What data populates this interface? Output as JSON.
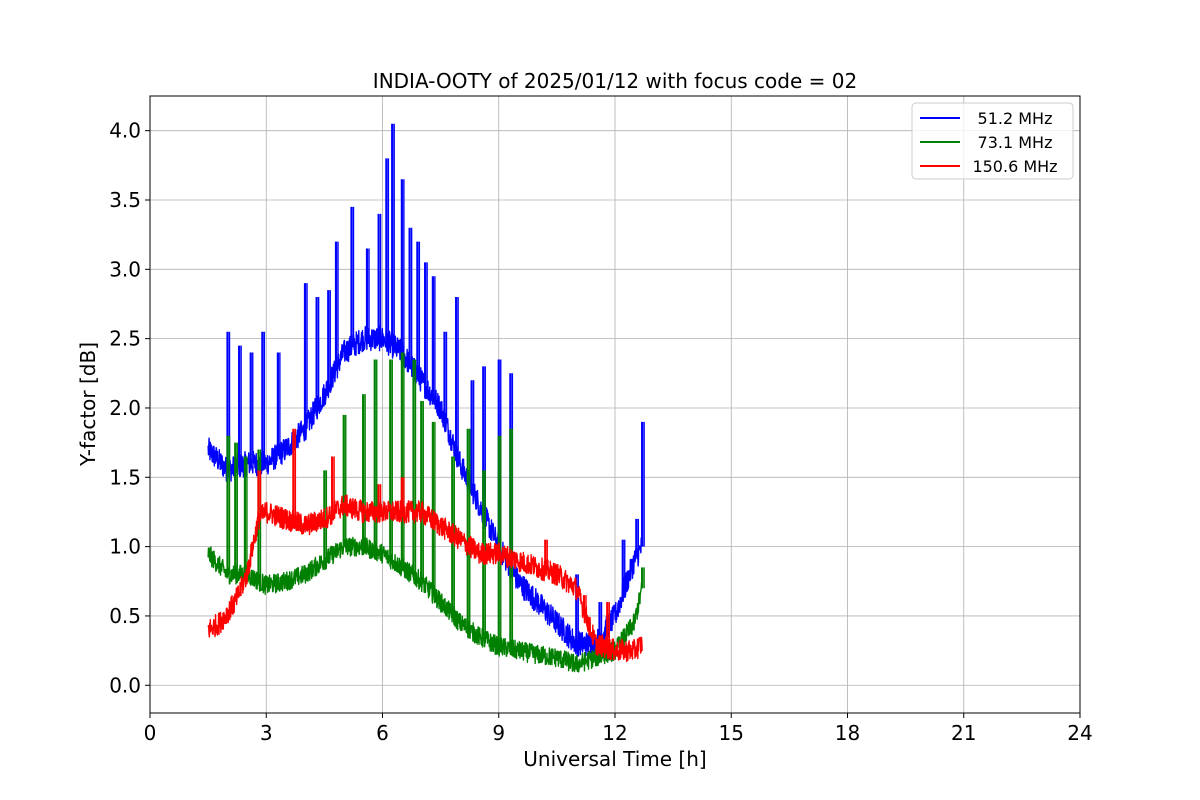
{
  "chart_data": {
    "type": "line",
    "title": "INDIA-OOTY of 2025/01/12 with focus code = 02",
    "xlabel": "Universal Time [h]",
    "ylabel": "Y-factor [dB]",
    "xlim": [
      0,
      24
    ],
    "ylim": [
      -0.2,
      4.25
    ],
    "xticks": [
      0,
      3,
      6,
      9,
      12,
      15,
      18,
      21,
      24
    ],
    "xtick_labels": [
      "0",
      "3",
      "6",
      "9",
      "12",
      "15",
      "18",
      "21",
      "24"
    ],
    "yticks": [
      0.0,
      0.5,
      1.0,
      1.5,
      2.0,
      2.5,
      3.0,
      3.5,
      4.0
    ],
    "ytick_labels": [
      "0.0",
      "0.5",
      "1.0",
      "1.5",
      "2.0",
      "2.5",
      "3.0",
      "3.5",
      "4.0"
    ],
    "grid": true,
    "legend_position": "top-right",
    "series": [
      {
        "name": "51.2 MHz",
        "color": "#0000ff",
        "x": [
          1.5,
          2.0,
          2.5,
          3.0,
          3.5,
          4.0,
          4.5,
          5.0,
          5.5,
          6.0,
          6.5,
          7.0,
          7.5,
          8.0,
          8.5,
          9.0,
          9.5,
          10.0,
          10.5,
          11.0,
          11.5,
          12.0,
          12.5,
          12.7
        ],
        "values": [
          1.7,
          1.55,
          1.6,
          1.6,
          1.7,
          1.85,
          2.1,
          2.4,
          2.5,
          2.5,
          2.4,
          2.2,
          2.0,
          1.6,
          1.3,
          1.0,
          0.75,
          0.6,
          0.45,
          0.3,
          0.3,
          0.5,
          0.9,
          1.0
        ],
        "spikes": [
          [
            2.0,
            2.55
          ],
          [
            2.3,
            2.45
          ],
          [
            2.6,
            2.4
          ],
          [
            2.9,
            2.55
          ],
          [
            3.3,
            2.4
          ],
          [
            4.0,
            2.9
          ],
          [
            4.3,
            2.8
          ],
          [
            4.6,
            2.85
          ],
          [
            4.8,
            3.2
          ],
          [
            5.2,
            3.45
          ],
          [
            5.6,
            3.15
          ],
          [
            5.9,
            3.4
          ],
          [
            6.1,
            3.8
          ],
          [
            6.25,
            4.05
          ],
          [
            6.5,
            3.65
          ],
          [
            6.7,
            3.3
          ],
          [
            6.9,
            3.2
          ],
          [
            7.1,
            3.05
          ],
          [
            7.3,
            2.95
          ],
          [
            7.6,
            2.55
          ],
          [
            7.9,
            2.8
          ],
          [
            8.3,
            2.2
          ],
          [
            8.6,
            2.3
          ],
          [
            9.0,
            2.35
          ],
          [
            9.3,
            2.25
          ],
          [
            11.0,
            0.8
          ],
          [
            11.6,
            0.6
          ],
          [
            12.2,
            1.05
          ],
          [
            12.55,
            1.2
          ],
          [
            12.7,
            1.9
          ]
        ]
      },
      {
        "name": "73.1 MHz",
        "color": "#008000",
        "x": [
          1.5,
          2.0,
          2.5,
          3.0,
          3.5,
          4.0,
          4.5,
          5.0,
          5.5,
          6.0,
          6.5,
          7.0,
          7.5,
          8.0,
          8.5,
          9.0,
          9.5,
          10.0,
          10.5,
          11.0,
          11.5,
          12.0,
          12.5,
          12.7
        ],
        "values": [
          0.95,
          0.8,
          0.8,
          0.72,
          0.75,
          0.8,
          0.9,
          1.0,
          1.0,
          0.95,
          0.85,
          0.75,
          0.6,
          0.45,
          0.35,
          0.28,
          0.25,
          0.22,
          0.2,
          0.15,
          0.2,
          0.25,
          0.45,
          0.7
        ],
        "spikes": [
          [
            2.0,
            1.8
          ],
          [
            2.2,
            1.75
          ],
          [
            2.45,
            1.65
          ],
          [
            2.8,
            1.7
          ],
          [
            4.5,
            1.55
          ],
          [
            5.0,
            1.95
          ],
          [
            5.5,
            2.1
          ],
          [
            5.8,
            2.35
          ],
          [
            6.2,
            2.35
          ],
          [
            6.5,
            2.4
          ],
          [
            6.8,
            2.35
          ],
          [
            7.0,
            2.05
          ],
          [
            7.3,
            1.9
          ],
          [
            7.8,
            1.65
          ],
          [
            8.2,
            1.85
          ],
          [
            8.6,
            1.55
          ],
          [
            9.0,
            1.8
          ],
          [
            9.3,
            1.85
          ],
          [
            12.7,
            0.85
          ]
        ]
      },
      {
        "name": "150.6 MHz",
        "color": "#ff0000",
        "x": [
          1.5,
          1.8,
          2.2,
          2.5,
          2.8,
          3.0,
          3.5,
          4.0,
          4.5,
          5.0,
          5.5,
          6.0,
          6.5,
          7.0,
          7.5,
          8.0,
          8.5,
          9.0,
          9.5,
          10.0,
          10.5,
          11.0,
          11.5,
          12.0,
          12.5,
          12.7
        ],
        "values": [
          0.4,
          0.45,
          0.6,
          0.8,
          1.2,
          1.25,
          1.2,
          1.15,
          1.2,
          1.3,
          1.25,
          1.25,
          1.25,
          1.25,
          1.15,
          1.05,
          0.95,
          0.95,
          0.9,
          0.85,
          0.8,
          0.7,
          0.3,
          0.25,
          0.25,
          0.3
        ],
        "spikes": [
          [
            2.8,
            1.55
          ],
          [
            3.7,
            1.85
          ],
          [
            4.7,
            1.65
          ],
          [
            6.5,
            1.5
          ],
          [
            5.9,
            1.45
          ],
          [
            10.2,
            1.05
          ],
          [
            11.2,
            0.65
          ],
          [
            11.8,
            0.6
          ]
        ]
      }
    ]
  }
}
